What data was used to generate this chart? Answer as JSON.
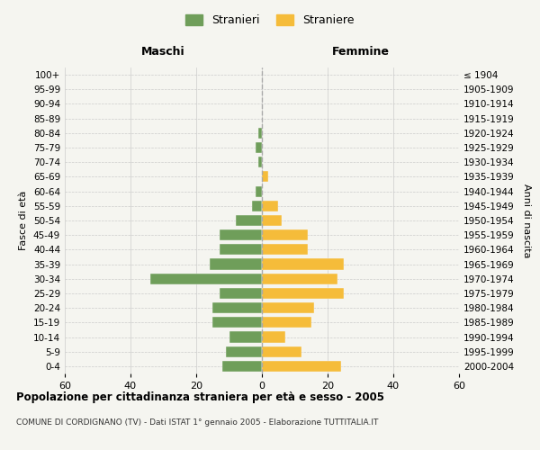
{
  "age_groups": [
    "0-4",
    "5-9",
    "10-14",
    "15-19",
    "20-24",
    "25-29",
    "30-34",
    "35-39",
    "40-44",
    "45-49",
    "50-54",
    "55-59",
    "60-64",
    "65-69",
    "70-74",
    "75-79",
    "80-84",
    "85-89",
    "90-94",
    "95-99",
    "100+"
  ],
  "birth_years": [
    "2000-2004",
    "1995-1999",
    "1990-1994",
    "1985-1989",
    "1980-1984",
    "1975-1979",
    "1970-1974",
    "1965-1969",
    "1960-1964",
    "1955-1959",
    "1950-1954",
    "1945-1949",
    "1940-1944",
    "1935-1939",
    "1930-1934",
    "1925-1929",
    "1920-1924",
    "1915-1919",
    "1910-1914",
    "1905-1909",
    "≤ 1904"
  ],
  "males": [
    12,
    11,
    10,
    15,
    15,
    13,
    34,
    16,
    13,
    13,
    8,
    3,
    2,
    0,
    1,
    2,
    1,
    0,
    0,
    0,
    0
  ],
  "females": [
    24,
    12,
    7,
    15,
    16,
    25,
    23,
    25,
    14,
    14,
    6,
    5,
    0,
    2,
    0,
    0,
    0,
    0,
    0,
    0,
    0
  ],
  "male_color": "#6f9e5a",
  "female_color": "#f5bc3a",
  "title": "Popolazione per cittadinanza straniera per età e sesso - 2005",
  "subtitle": "COMUNE DI CORDIGNANO (TV) - Dati ISTAT 1° gennaio 2005 - Elaborazione TUTTITALIA.IT",
  "xlabel_left": "Maschi",
  "xlabel_right": "Femmine",
  "ylabel_left": "Fasce di età",
  "ylabel_right": "Anni di nascita",
  "xlim": 60,
  "legend_labels": [
    "Stranieri",
    "Straniere"
  ],
  "background_color": "#f5f5f0",
  "grid_color": "#cccccc",
  "dashed_line_color": "#aaaaaa"
}
